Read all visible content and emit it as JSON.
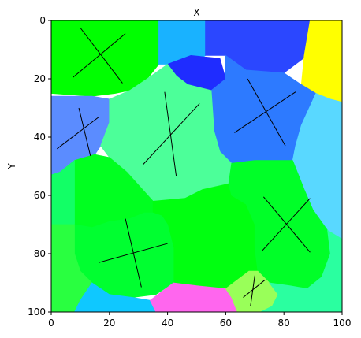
{
  "chart_data": {
    "type": "heatmap",
    "title": "X",
    "xlabel": "",
    "ylabel": "Y",
    "xlim": [
      0,
      100
    ],
    "ylim": [
      100,
      0
    ],
    "x_axis_position": "bottom",
    "y_inverted": true,
    "grid": false,
    "xticks": [
      "0",
      "20",
      "40",
      "60",
      "80",
      "100"
    ],
    "yticks": [
      "0",
      "20",
      "40",
      "60",
      "80",
      "100"
    ],
    "regions": [
      {
        "name": "grain-top-left",
        "color": "#00ff00",
        "points": [
          [
            0,
            0
          ],
          [
            37,
            0
          ],
          [
            37,
            15
          ],
          [
            33,
            20
          ],
          [
            27,
            24
          ],
          [
            22,
            25
          ],
          [
            14,
            26
          ],
          [
            0,
            25
          ]
        ]
      },
      {
        "name": "grain-top-cyan",
        "color": "#19b2ff",
        "points": [
          [
            37,
            0
          ],
          [
            53,
            0
          ],
          [
            53,
            12
          ],
          [
            48,
            15
          ],
          [
            40,
            15
          ],
          [
            37,
            15
          ]
        ]
      },
      {
        "name": "grain-top-blue",
        "color": "#2b47ff",
        "points": [
          [
            53,
            0
          ],
          [
            89,
            0
          ],
          [
            88,
            12
          ],
          [
            80,
            18
          ],
          [
            67,
            17
          ],
          [
            60,
            12
          ],
          [
            53,
            12
          ]
        ]
      },
      {
        "name": "grain-top-right-yellow",
        "color": "#ffff00",
        "points": [
          [
            89,
            0
          ],
          [
            100,
            0
          ],
          [
            100,
            28
          ],
          [
            96,
            27
          ],
          [
            91,
            25
          ],
          [
            86,
            22
          ],
          [
            87,
            12
          ]
        ]
      },
      {
        "name": "grain-small-blue",
        "color": "#1f2cff",
        "points": [
          [
            40,
            15
          ],
          [
            48,
            12
          ],
          [
            58,
            13
          ],
          [
            60,
            20
          ],
          [
            55,
            24
          ],
          [
            47,
            22
          ],
          [
            43,
            19
          ]
        ]
      },
      {
        "name": "grain-center-blue",
        "color": "#2d7aff",
        "points": [
          [
            60,
            12
          ],
          [
            67,
            17
          ],
          [
            80,
            18
          ],
          [
            86,
            22
          ],
          [
            91,
            25
          ],
          [
            86,
            36
          ],
          [
            84,
            43
          ],
          [
            83,
            48
          ],
          [
            70,
            48
          ],
          [
            62,
            49
          ],
          [
            58,
            45
          ],
          [
            56,
            38
          ],
          [
            55,
            24
          ],
          [
            60,
            20
          ]
        ]
      },
      {
        "name": "grain-left-blue",
        "color": "#5b8cff",
        "points": [
          [
            0,
            26
          ],
          [
            14,
            26
          ],
          [
            20,
            27
          ],
          [
            20,
            35
          ],
          [
            17,
            43
          ],
          [
            15,
            46
          ],
          [
            8,
            48
          ],
          [
            3,
            52
          ],
          [
            0,
            53
          ]
        ]
      },
      {
        "name": "grain-center-green",
        "color": "#4cff99",
        "points": [
          [
            27,
            24
          ],
          [
            33,
            20
          ],
          [
            40,
            15
          ],
          [
            43,
            19
          ],
          [
            47,
            22
          ],
          [
            55,
            24
          ],
          [
            56,
            38
          ],
          [
            58,
            45
          ],
          [
            62,
            49
          ],
          [
            61,
            56
          ],
          [
            52,
            58
          ],
          [
            46,
            61
          ],
          [
            35,
            62
          ],
          [
            26,
            52
          ],
          [
            20,
            47
          ],
          [
            17,
            43
          ],
          [
            20,
            35
          ],
          [
            20,
            27
          ]
        ]
      },
      {
        "name": "grain-right-cyan",
        "color": "#59d8ff",
        "points": [
          [
            91,
            25
          ],
          [
            96,
            27
          ],
          [
            100,
            28
          ],
          [
            100,
            75
          ],
          [
            95,
            72
          ],
          [
            90,
            65
          ],
          [
            87,
            58
          ],
          [
            83,
            48
          ],
          [
            84,
            43
          ],
          [
            86,
            36
          ]
        ]
      },
      {
        "name": "grain-mid-left-green",
        "color": "#00ff20",
        "points": [
          [
            8,
            48
          ],
          [
            15,
            46
          ],
          [
            20,
            47
          ],
          [
            26,
            52
          ],
          [
            35,
            62
          ],
          [
            35,
            66
          ],
          [
            32,
            66
          ],
          [
            27,
            68
          ],
          [
            20,
            69
          ],
          [
            14,
            71
          ],
          [
            8,
            70
          ],
          [
            8,
            60
          ]
        ]
      },
      {
        "name": "grain-left-mint",
        "color": "#12ff66",
        "points": [
          [
            0,
            53
          ],
          [
            3,
            52
          ],
          [
            8,
            48
          ],
          [
            8,
            70
          ],
          [
            0,
            70
          ]
        ]
      },
      {
        "name": "grain-mid-green",
        "color": "#00ff10",
        "points": [
          [
            35,
            62
          ],
          [
            46,
            61
          ],
          [
            52,
            58
          ],
          [
            61,
            56
          ],
          [
            62,
            60
          ],
          [
            67,
            63
          ],
          [
            70,
            70
          ],
          [
            70,
            78
          ],
          [
            71,
            86
          ],
          [
            68,
            90
          ],
          [
            60,
            92
          ],
          [
            50,
            91
          ],
          [
            42,
            90
          ],
          [
            42,
            78
          ],
          [
            40,
            70
          ],
          [
            38,
            67
          ],
          [
            35,
            66
          ]
        ]
      },
      {
        "name": "grain-right-green",
        "color": "#00ff28",
        "points": [
          [
            62,
            49
          ],
          [
            70,
            48
          ],
          [
            83,
            48
          ],
          [
            87,
            58
          ],
          [
            90,
            65
          ],
          [
            95,
            72
          ],
          [
            96,
            80
          ],
          [
            93,
            88
          ],
          [
            88,
            92
          ],
          [
            82,
            91
          ],
          [
            75,
            90
          ],
          [
            71,
            86
          ],
          [
            70,
            78
          ],
          [
            70,
            70
          ],
          [
            67,
            63
          ],
          [
            62,
            60
          ],
          [
            61,
            56
          ]
        ]
      },
      {
        "name": "grain-bottom-left-green",
        "color": "#00ff30",
        "points": [
          [
            8,
            70
          ],
          [
            14,
            71
          ],
          [
            20,
            69
          ],
          [
            27,
            68
          ],
          [
            32,
            66
          ],
          [
            35,
            66
          ],
          [
            38,
            67
          ],
          [
            40,
            70
          ],
          [
            42,
            78
          ],
          [
            42,
            90
          ],
          [
            36,
            94
          ],
          [
            28,
            95
          ],
          [
            20,
            94
          ],
          [
            14,
            90
          ],
          [
            10,
            86
          ],
          [
            8,
            80
          ]
        ]
      },
      {
        "name": "grain-bottom-left-lime",
        "color": "#29ff40",
        "points": [
          [
            0,
            70
          ],
          [
            8,
            70
          ],
          [
            8,
            80
          ],
          [
            10,
            86
          ],
          [
            14,
            90
          ],
          [
            10,
            96
          ],
          [
            8,
            100
          ],
          [
            0,
            100
          ]
        ]
      },
      {
        "name": "grain-bottom-cyan",
        "color": "#0fc8ff",
        "points": [
          [
            14,
            90
          ],
          [
            20,
            94
          ],
          [
            28,
            95
          ],
          [
            34,
            96
          ],
          [
            36,
            100
          ],
          [
            8,
            100
          ],
          [
            10,
            96
          ]
        ]
      },
      {
        "name": "grain-bottom-magenta",
        "color": "#ff66ee",
        "points": [
          [
            34,
            96
          ],
          [
            42,
            90
          ],
          [
            50,
            91
          ],
          [
            60,
            92
          ],
          [
            62,
            95
          ],
          [
            64,
            100
          ],
          [
            36,
            100
          ]
        ]
      },
      {
        "name": "grain-bottom-lightgreen",
        "color": "#99ff59",
        "points": [
          [
            60,
            92
          ],
          [
            68,
            86
          ],
          [
            71,
            86
          ],
          [
            75,
            90
          ],
          [
            78,
            94
          ],
          [
            76,
            98
          ],
          [
            72,
            100
          ],
          [
            64,
            100
          ],
          [
            62,
            95
          ]
        ]
      },
      {
        "name": "grain-bottom-right-teal",
        "color": "#2affa0",
        "points": [
          [
            75,
            90
          ],
          [
            82,
            91
          ],
          [
            88,
            92
          ],
          [
            93,
            88
          ],
          [
            96,
            80
          ],
          [
            95,
            72
          ],
          [
            100,
            75
          ],
          [
            100,
            100
          ],
          [
            72,
            100
          ],
          [
            76,
            98
          ],
          [
            78,
            94
          ]
        ]
      }
    ],
    "segments": [
      {
        "x1": 10,
        "y1": 2.5,
        "x2": 24.5,
        "y2": 21.5
      },
      {
        "x1": 25.5,
        "y1": 4.5,
        "x2": 7.5,
        "y2": 19.5
      },
      {
        "x1": 9.5,
        "y1": 30,
        "x2": 13.5,
        "y2": 46.5
      },
      {
        "x1": 16.5,
        "y1": 33,
        "x2": 2,
        "y2": 44
      },
      {
        "x1": 39,
        "y1": 24.5,
        "x2": 43,
        "y2": 53.5
      },
      {
        "x1": 51,
        "y1": 28.5,
        "x2": 31.5,
        "y2": 49.5
      },
      {
        "x1": 67.5,
        "y1": 20,
        "x2": 80.5,
        "y2": 43
      },
      {
        "x1": 84,
        "y1": 24.5,
        "x2": 63,
        "y2": 38.5
      },
      {
        "x1": 25.5,
        "y1": 68,
        "x2": 31,
        "y2": 91.5
      },
      {
        "x1": 40,
        "y1": 76.5,
        "x2": 16.5,
        "y2": 83
      },
      {
        "x1": 73,
        "y1": 60.5,
        "x2": 89,
        "y2": 79.5
      },
      {
        "x1": 89,
        "y1": 61,
        "x2": 72.5,
        "y2": 79
      },
      {
        "x1": 70,
        "y1": 87.5,
        "x2": 68.5,
        "y2": 98
      },
      {
        "x1": 73.5,
        "y1": 89,
        "x2": 66,
        "y2": 95
      }
    ],
    "segment_color": "#000000"
  }
}
